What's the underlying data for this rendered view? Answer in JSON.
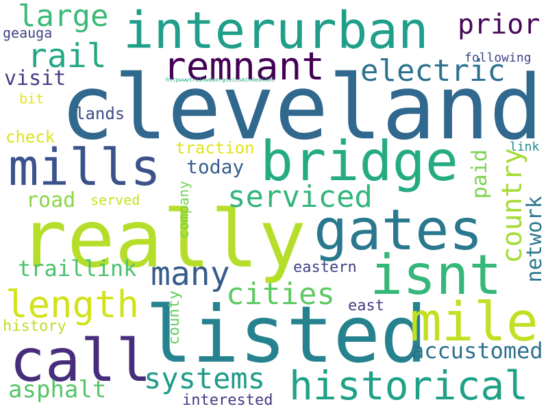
{
  "words": [
    {
      "text": "cleveland",
      "color": "#31688e"
    },
    {
      "text": "really",
      "color": "#b5de2b"
    },
    {
      "text": "listed",
      "color": "#26828e"
    },
    {
      "text": "interurban",
      "color": "#1f9e89"
    },
    {
      "text": "bridge",
      "color": "#25ab82"
    },
    {
      "text": "gates",
      "color": "#2a788e"
    },
    {
      "text": "isnt",
      "color": "#35b779"
    },
    {
      "text": "mills",
      "color": "#3b528b"
    },
    {
      "text": "call",
      "color": "#472d7b"
    },
    {
      "text": "mile",
      "color": "#c2df23"
    },
    {
      "text": "remnant",
      "color": "#440154"
    },
    {
      "text": "historical",
      "color": "#1fa188"
    },
    {
      "text": "length",
      "color": "#d2e21b"
    },
    {
      "text": "rail",
      "color": "#22a785"
    },
    {
      "text": "electric",
      "color": "#2c728e"
    },
    {
      "text": "systems",
      "color": "#1e9b8a"
    },
    {
      "text": "large",
      "color": "#3aba76"
    },
    {
      "text": "prior",
      "color": "#46075a"
    },
    {
      "text": "many",
      "color": "#365c8d"
    },
    {
      "text": "serviced",
      "color": "#32b67a"
    },
    {
      "text": "cities",
      "color": "#5ec962"
    },
    {
      "text": "country",
      "color": "#a5db36"
    },
    {
      "text": "accustomed",
      "color": "#2d708e"
    },
    {
      "text": "asphalt",
      "color": "#54c568"
    },
    {
      "text": "traillink",
      "color": "#4ac16d"
    },
    {
      "text": "road",
      "color": "#8bd646"
    },
    {
      "text": "visit",
      "color": "#433e85"
    },
    {
      "text": "today",
      "color": "#355f8d"
    },
    {
      "text": "network",
      "color": "#2a768e"
    },
    {
      "text": "paid",
      "color": "#7cd250"
    },
    {
      "text": "lands",
      "color": "#3e4989"
    },
    {
      "text": "traction",
      "color": "#e2e418"
    },
    {
      "text": "check",
      "color": "#dde318"
    },
    {
      "text": "interested",
      "color": "#453882"
    },
    {
      "text": "eastern",
      "color": "#424086"
    },
    {
      "text": "east",
      "color": "#433d84"
    },
    {
      "text": "county",
      "color": "#63cb5f"
    },
    {
      "text": "history",
      "color": "#bade28"
    },
    {
      "text": "company",
      "color": "#77d153"
    },
    {
      "text": "served",
      "color": "#c8e020"
    },
    {
      "text": "bit",
      "color": "#e5e419"
    },
    {
      "text": "geauga",
      "color": "#414487"
    },
    {
      "text": "following",
      "color": "#3f4788"
    },
    {
      "text": "link",
      "color": "#238a8d"
    },
    {
      "text": "httpwwwtrainweborgceihsmindexhtml",
      "color": "#20a386"
    }
  ]
}
